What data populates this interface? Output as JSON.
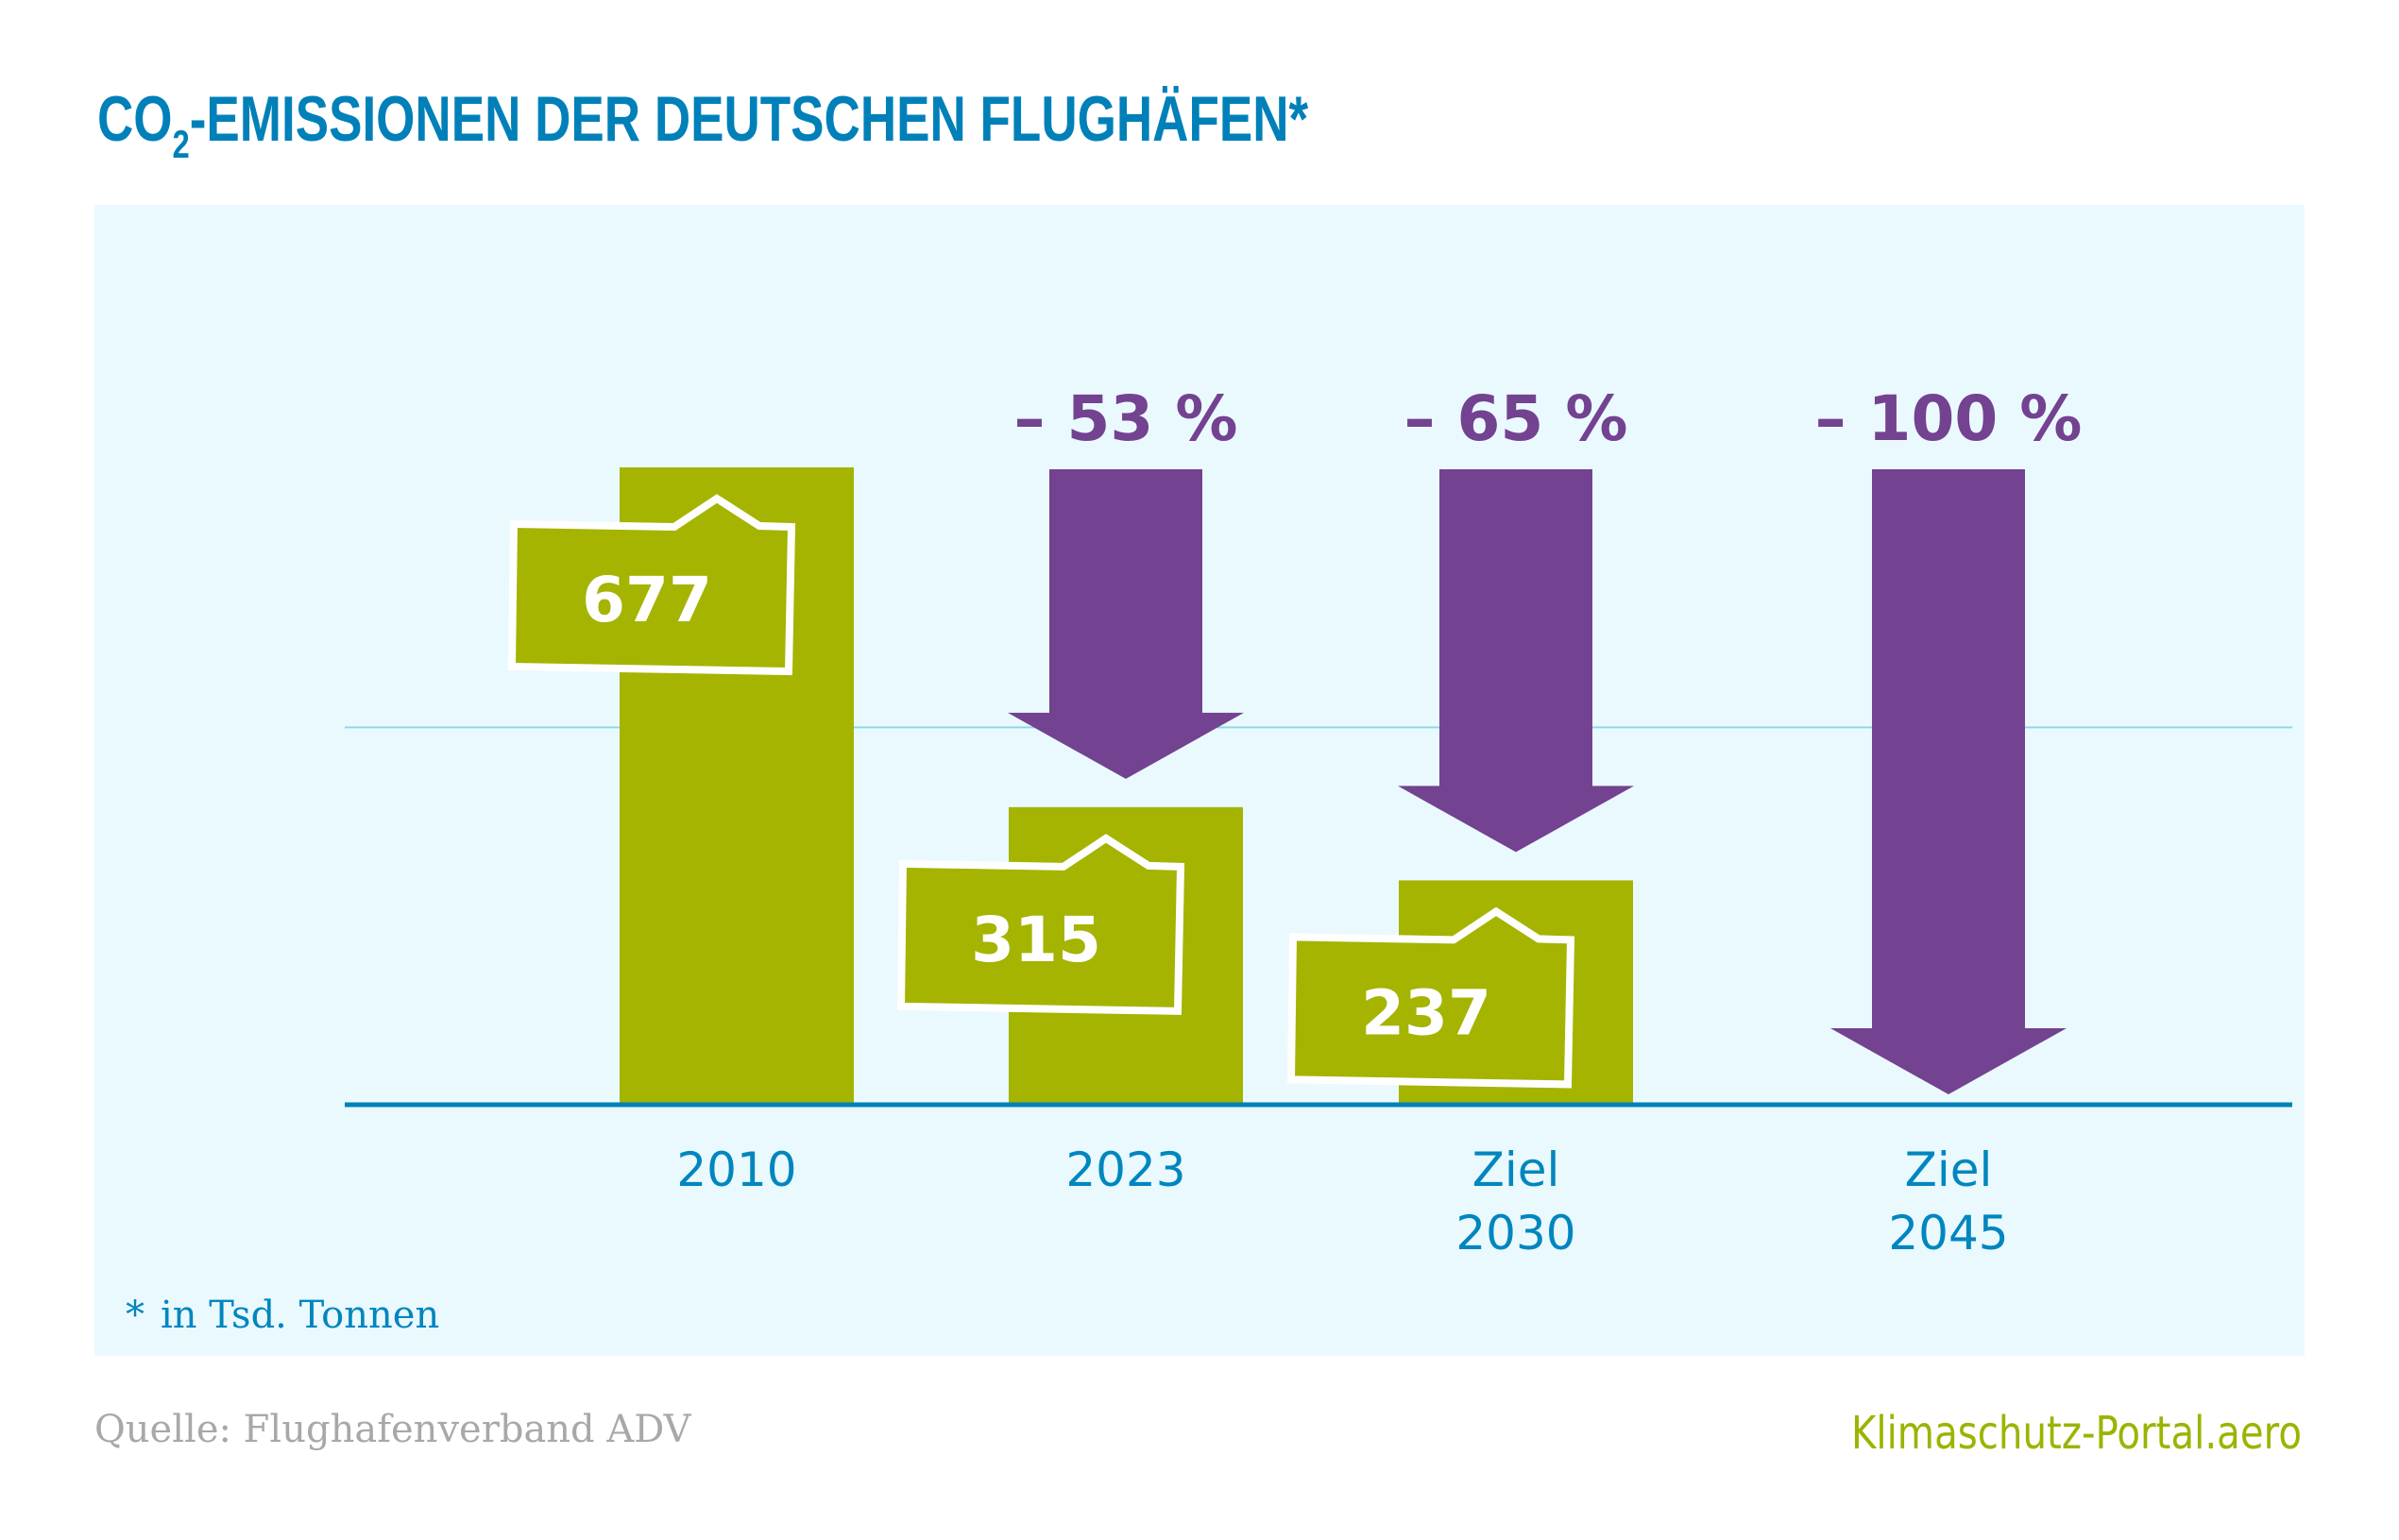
{
  "colors": {
    "title": "#0080B9",
    "panel": "#EAF9FD",
    "bar": "#A4B400",
    "arrow": "#734290",
    "axis": "#0082B8",
    "grid": "#8ED8E8",
    "category": "#0086BF",
    "source": "#A8A8A8",
    "brand": "#9DB300"
  },
  "header": {
    "title_main": "CO",
    "title_sub": "2",
    "title_rest": "-EMISSIONEN DER DEUTSCHEN FLUGHÄFEN*"
  },
  "footer": {
    "footnote_mark": "*",
    "footnote": "in Tsd. Tonnen",
    "source": "Quelle: Flughafenverband ADV",
    "brand": "Klimaschutz-Portal.aero"
  },
  "chart_data": {
    "type": "bar",
    "title": "CO2-Emissionen der deutschen Flughäfen*",
    "unit_note": "* in Tsd. Tonnen",
    "xlabel": "",
    "ylabel": "",
    "ylim": [
      0,
      677
    ],
    "gridlines": [
      400
    ],
    "grid": true,
    "legend": "none",
    "categories": [
      {
        "line1": "2010",
        "line2": ""
      },
      {
        "line1": "2023",
        "line2": ""
      },
      {
        "line1": "Ziel",
        "line2": "2030"
      },
      {
        "line1": "Ziel",
        "line2": "2045"
      }
    ],
    "values": [
      677,
      315,
      237,
      0
    ],
    "value_labels": [
      "677",
      "315",
      "237",
      ""
    ],
    "reductions": [
      "",
      "– 53 %",
      "– 65 %",
      "– 100 %"
    ],
    "reduction_values": [
      null,
      -53,
      -65,
      -100
    ]
  }
}
